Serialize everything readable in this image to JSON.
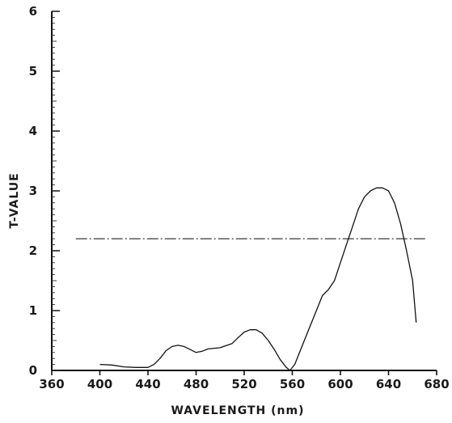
{
  "chart_data": {
    "type": "line",
    "xlabel": "WAVELENGTH (nm)",
    "ylabel": "T-VALUE",
    "xlim": [
      360,
      680
    ],
    "ylim": [
      0,
      6
    ],
    "x_ticks": [
      360,
      400,
      440,
      480,
      520,
      560,
      600,
      640,
      680
    ],
    "y_ticks": [
      0,
      1,
      2,
      3,
      4,
      5,
      6
    ],
    "grid": false,
    "legend": "none",
    "threshold_line": {
      "y": 2.2,
      "x_range": [
        380,
        672
      ],
      "style": "dash-dot"
    },
    "series": [
      {
        "points": [
          [
            400,
            0.1
          ],
          [
            410,
            0.09
          ],
          [
            420,
            0.06
          ],
          [
            430,
            0.05
          ],
          [
            440,
            0.05
          ],
          [
            445,
            0.1
          ],
          [
            450,
            0.2
          ],
          [
            455,
            0.33
          ],
          [
            460,
            0.4
          ],
          [
            465,
            0.42
          ],
          [
            470,
            0.4
          ],
          [
            475,
            0.35
          ],
          [
            480,
            0.3
          ],
          [
            485,
            0.32
          ],
          [
            490,
            0.36
          ],
          [
            500,
            0.38
          ],
          [
            510,
            0.45
          ],
          [
            515,
            0.55
          ],
          [
            520,
            0.64
          ],
          [
            525,
            0.68
          ],
          [
            530,
            0.68
          ],
          [
            535,
            0.62
          ],
          [
            540,
            0.5
          ],
          [
            545,
            0.35
          ],
          [
            550,
            0.18
          ],
          [
            555,
            0.05
          ],
          [
            558,
            0.0
          ],
          [
            562,
            0.1
          ],
          [
            568,
            0.4
          ],
          [
            575,
            0.75
          ],
          [
            580,
            1.0
          ],
          [
            585,
            1.25
          ],
          [
            590,
            1.35
          ],
          [
            595,
            1.5
          ],
          [
            600,
            1.8
          ],
          [
            605,
            2.1
          ],
          [
            610,
            2.4
          ],
          [
            615,
            2.7
          ],
          [
            620,
            2.9
          ],
          [
            625,
            3.0
          ],
          [
            630,
            3.05
          ],
          [
            635,
            3.05
          ],
          [
            640,
            3.0
          ],
          [
            645,
            2.8
          ],
          [
            650,
            2.45
          ],
          [
            655,
            2.0
          ],
          [
            660,
            1.5
          ],
          [
            663,
            0.8
          ]
        ]
      }
    ]
  }
}
